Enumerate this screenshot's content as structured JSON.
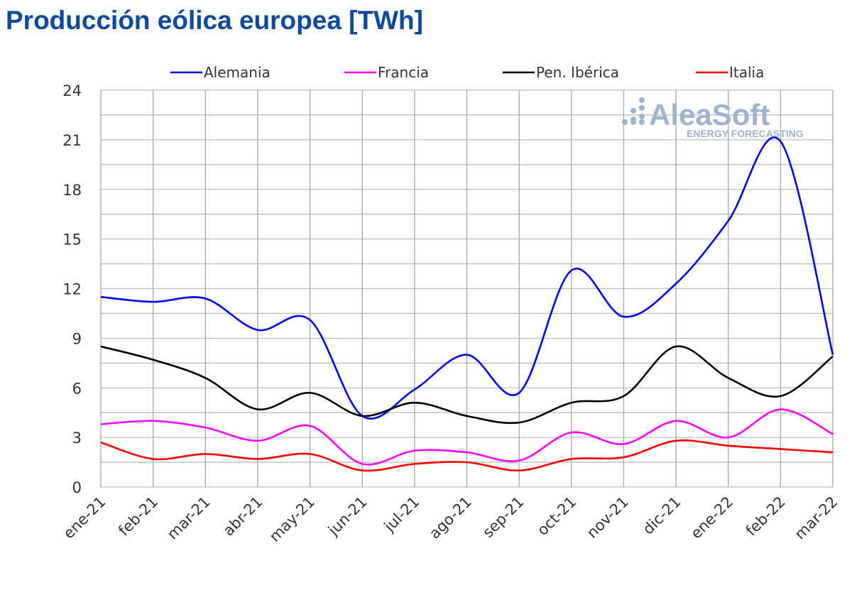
{
  "chart_data": {
    "type": "line",
    "title": "Producción eólica europea [TWh]",
    "xlabel": "",
    "ylabel": "",
    "ylim": [
      0,
      24
    ],
    "yticks": [
      0,
      3,
      6,
      9,
      12,
      15,
      18,
      21,
      24
    ],
    "grid": true,
    "legend_position": "top",
    "categories": [
      "ene-21",
      "feb-21",
      "mar-21",
      "abr-21",
      "may-21",
      "jun-21",
      "jul-21",
      "ago-21",
      "sep-21",
      "oct-21",
      "nov-21",
      "dic-21",
      "ene-22",
      "feb-22",
      "mar-22"
    ],
    "series": [
      {
        "name": "Alemania",
        "color": "#0000ff",
        "values": [
          11.5,
          11.2,
          11.4,
          9.5,
          10.1,
          4.3,
          5.9,
          8.0,
          5.7,
          13.1,
          10.3,
          12.3,
          16.1,
          20.9,
          8.0
        ]
      },
      {
        "name": "Francia",
        "color": "#ff00ff",
        "values": [
          3.8,
          4.0,
          3.6,
          2.8,
          3.7,
          1.4,
          2.2,
          2.1,
          1.6,
          3.3,
          2.6,
          4.0,
          3.0,
          4.7,
          3.2
        ]
      },
      {
        "name": "Pen. Ibérica",
        "color": "#000000",
        "values": [
          8.5,
          7.7,
          6.6,
          4.7,
          5.7,
          4.3,
          5.1,
          4.3,
          3.9,
          5.1,
          5.5,
          8.5,
          6.6,
          5.5,
          7.9
        ]
      },
      {
        "name": "Italia",
        "color": "#ff0000",
        "values": [
          2.7,
          1.7,
          2.0,
          1.7,
          2.0,
          1.0,
          1.4,
          1.5,
          1.0,
          1.7,
          1.8,
          2.8,
          2.5,
          2.3,
          2.1
        ]
      }
    ]
  },
  "watermark": {
    "brand": "AleaSoft",
    "tagline": "ENERGY FORECASTING"
  }
}
